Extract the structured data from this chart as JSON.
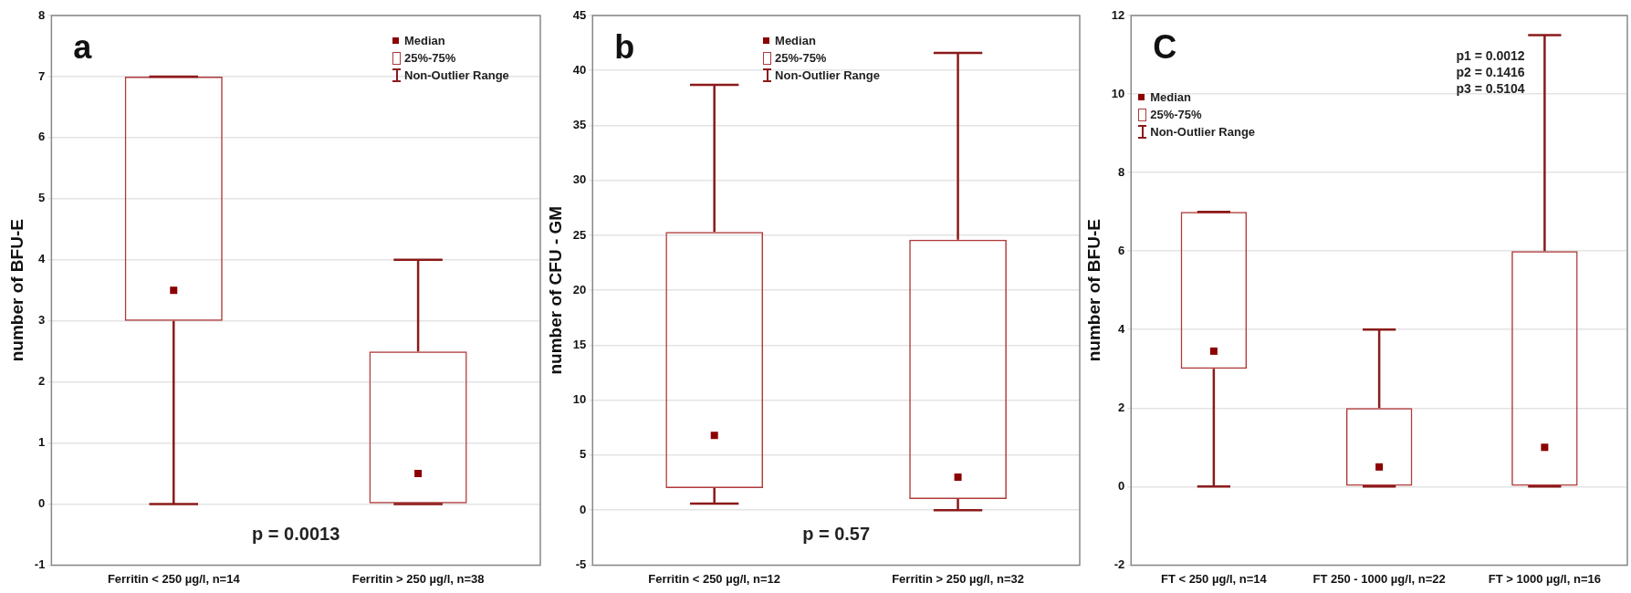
{
  "chart_data": [
    {
      "type": "box",
      "ylabel": "number of BFU-E",
      "categories": [
        "Ferritin < 250 µg/l, n=14",
        "Ferritin > 250 µg/l, n=38"
      ],
      "ylim": [
        -1,
        8
      ],
      "yticks": [
        -1,
        0,
        1,
        2,
        3,
        4,
        5,
        6,
        7,
        8
      ],
      "grid": "y",
      "marker": "square",
      "series": [
        {
          "color": "#b03a3a",
          "boxes": [
            {
              "low": 0,
              "q1": 3,
              "median": 3.5,
              "q3": 7,
              "high": 7
            },
            {
              "low": 0,
              "q1": 0,
              "median": 0.5,
              "q3": 2.5,
              "high": 4
            }
          ]
        }
      ],
      "annotations": [
        "a",
        "Median",
        "25%-75%",
        "Non-Outlier Range",
        "p = 0.0013"
      ]
    },
    {
      "type": "box",
      "ylabel": "number of CFU - GM",
      "categories": [
        "Ferritin < 250 µg/l, n=12",
        "Ferritin > 250 µg/l, n=32"
      ],
      "ylim": [
        -5,
        45
      ],
      "yticks": [
        -5,
        0,
        5,
        10,
        15,
        20,
        25,
        30,
        35,
        40,
        45
      ],
      "grid": "y",
      "marker": "square",
      "series": [
        {
          "color": "#b03a3a",
          "boxes": [
            {
              "low": 0.6,
              "q1": 2,
              "median": 6.8,
              "q3": 25.3,
              "high": 38.7
            },
            {
              "low": 0,
              "q1": 1,
              "median": 3,
              "q3": 24.6,
              "high": 41.6
            }
          ]
        }
      ],
      "annotations": [
        "b",
        "Median",
        "25%-75%",
        "Non-Outlier Range",
        "p = 0.57"
      ]
    },
    {
      "type": "box",
      "ylabel": "number of BFU-E",
      "categories": [
        "FT < 250 µg/l, n=14",
        "FT 250 - 1000 µg/l, n=22",
        "FT > 1000 µg/l, n=16"
      ],
      "ylim": [
        -2,
        12
      ],
      "yticks": [
        -2,
        0,
        2,
        4,
        6,
        8,
        10,
        12
      ],
      "grid": "y",
      "marker": "square",
      "series": [
        {
          "color": "#b03a3a",
          "boxes": [
            {
              "low": 0,
              "q1": 3,
              "median": 3.45,
              "q3": 7,
              "high": 7
            },
            {
              "low": 0,
              "q1": 0,
              "median": 0.5,
              "q3": 2,
              "high": 4
            },
            {
              "low": 0,
              "q1": 0,
              "median": 1,
              "q3": 6,
              "high": 11.5
            }
          ]
        }
      ],
      "annotations": [
        "C",
        "Median",
        "25%-75%",
        "Non-Outlier Range",
        "p1 = 0.0012",
        "p2 = 0.1416",
        "p3 = 0.5104"
      ]
    }
  ]
}
